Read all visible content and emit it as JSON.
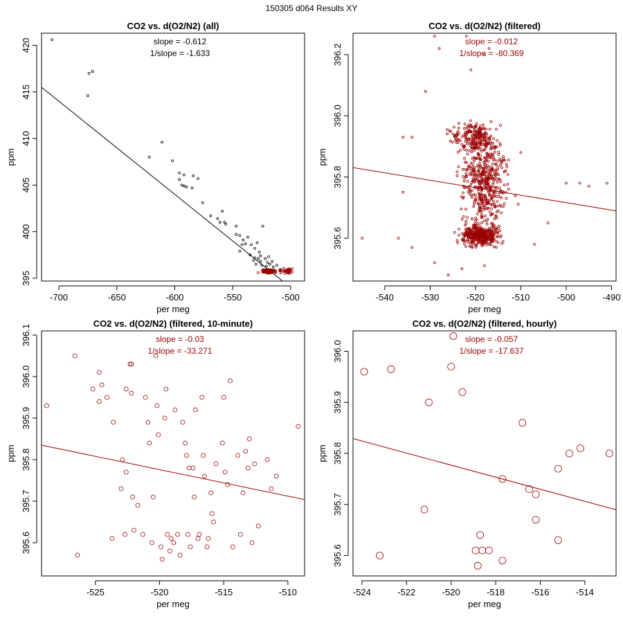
{
  "page_title": "150305   d064   Results XY",
  "colors": {
    "all_points": "#000000",
    "filtered": "#990000",
    "axis": "#000000"
  },
  "chart_data": [
    {
      "type": "scatter",
      "title": "CO2 vs. d(O2/N2) (all)",
      "xlabel": "per meg",
      "ylabel": "ppm",
      "xlim": [
        -715,
        -488
      ],
      "ylim": [
        394.7,
        421.3
      ],
      "xticks": [
        -700,
        -650,
        -600,
        -550,
        -500
      ],
      "yticks": [
        395,
        400,
        405,
        410,
        415,
        420
      ],
      "annotations": {
        "slope": "slope = -0.612",
        "inv_slope": "1/slope = -1.633",
        "color": "#000000"
      },
      "fit_line": {
        "slope": -0.1,
        "x0": -520,
        "y0": 396.0,
        "x_range": [
          -715,
          -488
        ],
        "color": "#000000"
      },
      "series": [
        {
          "name": "all",
          "color": "#000000",
          "marker_size": 1.5,
          "points": [
            [
              -706,
              420.6
            ],
            [
              -674,
              417.0
            ],
            [
              -671,
              417.2
            ],
            [
              -675,
              414.6
            ],
            [
              -622,
              408.0
            ],
            [
              -611,
              409.6
            ],
            [
              -602,
              407.6
            ],
            [
              -596,
              406.3
            ],
            [
              -592,
              406.1
            ],
            [
              -596,
              405.6
            ],
            [
              -592,
              404.9
            ],
            [
              -590,
              404.8
            ],
            [
              -594,
              405.0
            ],
            [
              -584,
              406.0
            ],
            [
              -580,
              405.7
            ],
            [
              -585,
              404.7
            ],
            [
              -576,
              403.1
            ],
            [
              -569,
              401.7
            ],
            [
              -563,
              401.4
            ],
            [
              -559,
              402.2
            ],
            [
              -561,
              401.0
            ],
            [
              -557,
              401.0
            ],
            [
              -556,
              400.8
            ],
            [
              -547,
              400.6
            ],
            [
              -547,
              399.7
            ],
            [
              -544,
              399.6
            ],
            [
              -541,
              399.1
            ],
            [
              -539,
              398.7
            ],
            [
              -537,
              399.4
            ],
            [
              -534,
              398.6
            ],
            [
              -531,
              398.2
            ],
            [
              -529,
              398.8
            ],
            [
              -527,
              397.8
            ],
            [
              -524,
              400.6
            ],
            [
              -542,
              398.6
            ],
            [
              -544,
              397.9
            ],
            [
              -535,
              397.5
            ],
            [
              -531,
              397.2
            ],
            [
              -528,
              397.1
            ],
            [
              -532,
              396.9
            ],
            [
              -526,
              397.4
            ],
            [
              -522,
              397.1
            ],
            [
              -520,
              396.7
            ],
            [
              -518,
              396.5
            ],
            [
              -526,
              396.8
            ],
            [
              -519,
              397.3
            ],
            [
              -516,
              396.8
            ],
            [
              -525,
              396.4
            ],
            [
              -521,
              396.3
            ],
            [
              -515,
              396.2
            ],
            [
              -512,
              396.4
            ],
            [
              -530,
              396.5
            ]
          ]
        },
        {
          "name": "filtered",
          "color": "#990000",
          "marker_size": 1.5,
          "cluster": true,
          "points": [
            [
              -524,
              395.9
            ],
            [
              -518,
              395.7
            ],
            [
              -513,
              395.6
            ],
            [
              -509,
              395.8
            ],
            [
              -528,
              395.6
            ],
            [
              -502,
              395.7
            ]
          ]
        }
      ]
    },
    {
      "type": "scatter",
      "title": "CO2 vs. d(O2/N2) (filtered)",
      "xlabel": "per meg",
      "ylabel": "ppm",
      "xlim": [
        -547,
        -489
      ],
      "ylim": [
        395.46,
        396.27
      ],
      "xticks": [
        -540,
        -530,
        -520,
        -510,
        -500,
        -490
      ],
      "yticks": [
        395.6,
        395.8,
        396.0,
        396.2
      ],
      "annotations": {
        "slope": "slope = -0.012",
        "inv_slope": "1/slope = -80.369",
        "color": "#990000"
      },
      "fit_line": {
        "slope": -0.00244,
        "x0": -520,
        "y0": 395.765,
        "x_range": [
          -547,
          -489
        ],
        "color": "#990000"
      },
      "series": [
        {
          "name": "filtered",
          "color": "#990000",
          "marker_size": 1.5,
          "cloud": true,
          "points": [
            [
              -545,
              395.6
            ],
            [
              -536,
              395.93
            ],
            [
              -534,
              395.93
            ],
            [
              -529,
              396.26
            ],
            [
              -528,
              396.22
            ],
            [
              -522,
              396.26
            ],
            [
              -518,
              396.2
            ],
            [
              -517,
              396.22
            ],
            [
              -510,
              395.88
            ],
            [
              -500,
              395.78
            ],
            [
              -497,
              395.78
            ],
            [
              -495,
              395.77
            ],
            [
              -491,
              395.78
            ],
            [
              -537,
              395.6
            ],
            [
              -534,
              395.57
            ],
            [
              -529,
              395.52
            ],
            [
              -526,
              395.48
            ],
            [
              -523,
              395.5
            ],
            [
              -518,
              395.51
            ],
            [
              -521,
              396.15
            ],
            [
              -531,
              396.08
            ],
            [
              -536,
              395.75
            ],
            [
              -507,
              395.58
            ],
            [
              -504,
              395.65
            ]
          ]
        }
      ]
    },
    {
      "type": "scatter",
      "title": "CO2 vs. d(O2/N2) (filtered, 10-minute)",
      "xlabel": "per meg",
      "ylabel": "ppm",
      "xlim": [
        -529.2,
        -508.7
      ],
      "ylim": [
        395.52,
        396.11
      ],
      "xticks": [
        -525,
        -520,
        -515,
        -510
      ],
      "yticks": [
        395.6,
        395.7,
        395.8,
        395.9,
        396.0,
        396.1
      ],
      "annotations": {
        "slope": "slope = -0.03",
        "inv_slope": "1/slope = -33.271",
        "color": "#990000"
      },
      "fit_line": {
        "slope": -0.00639,
        "x0": -520,
        "y0": 395.776,
        "x_range": [
          -529.2,
          -508.7
        ],
        "color": "#990000"
      },
      "series": [
        {
          "name": "10-minute",
          "color": "#990000",
          "marker_size": 3,
          "points": [
            [
              -528.8,
              395.93
            ],
            [
              -526.6,
              396.05
            ],
            [
              -526.4,
              395.57
            ],
            [
              -525.2,
              395.97
            ],
            [
              -524.7,
              396.01
            ],
            [
              -524.7,
              395.94
            ],
            [
              -524.5,
              395.98
            ],
            [
              -524.1,
              395.95
            ],
            [
              -523.7,
              395.61
            ],
            [
              -523.6,
              395.89
            ],
            [
              -522.9,
              395.8
            ],
            [
              -522.6,
              395.77
            ],
            [
              -522.6,
              395.97
            ],
            [
              -522.7,
              395.62
            ],
            [
              -522.3,
              396.03
            ],
            [
              -522.2,
              396.03
            ],
            [
              -522.2,
              395.96
            ],
            [
              -522.1,
              395.71
            ],
            [
              -522.0,
              395.63
            ],
            [
              -521.7,
              395.69
            ],
            [
              -521.3,
              395.62
            ],
            [
              -521.1,
              395.95
            ],
            [
              -520.9,
              395.89
            ],
            [
              -520.8,
              395.84
            ],
            [
              -520.6,
              395.6
            ],
            [
              -520.5,
              395.71
            ],
            [
              -520.3,
              396.05
            ],
            [
              -520.2,
              395.93
            ],
            [
              -520.1,
              395.86
            ],
            [
              -519.9,
              395.59
            ],
            [
              -519.8,
              395.56
            ],
            [
              -519.6,
              395.9
            ],
            [
              -519.5,
              395.97
            ],
            [
              -519.4,
              395.62
            ],
            [
              -519.2,
              395.58
            ],
            [
              -519.1,
              395.61
            ],
            [
              -518.9,
              395.6
            ],
            [
              -518.8,
              395.92
            ],
            [
              -518.6,
              395.62
            ],
            [
              -518.4,
              395.57
            ],
            [
              -518.2,
              395.89
            ],
            [
              -518.0,
              395.84
            ],
            [
              -517.9,
              395.81
            ],
            [
              -517.8,
              395.62
            ],
            [
              -517.6,
              395.59
            ],
            [
              -517.4,
              395.78
            ],
            [
              -517.3,
              395.71
            ],
            [
              -517.2,
              395.92
            ],
            [
              -517.0,
              395.61
            ],
            [
              -516.9,
              395.62
            ],
            [
              -516.7,
              395.95
            ],
            [
              -516.6,
              395.81
            ],
            [
              -516.5,
              395.76
            ],
            [
              -516.3,
              395.59
            ],
            [
              -516.2,
              395.61
            ],
            [
              -516.0,
              395.72
            ],
            [
              -515.9,
              395.67
            ],
            [
              -515.8,
              395.65
            ],
            [
              -515.6,
              395.79
            ],
            [
              -515.1,
              395.84
            ],
            [
              -515.0,
              395.95
            ],
            [
              -514.9,
              395.77
            ],
            [
              -514.7,
              395.74
            ],
            [
              -514.3,
              395.59
            ],
            [
              -513.9,
              395.81
            ],
            [
              -513.7,
              395.62
            ],
            [
              -513.5,
              395.72
            ],
            [
              -513.3,
              395.82
            ],
            [
              -513.1,
              395.78
            ],
            [
              -513.0,
              395.85
            ],
            [
              -512.8,
              395.6
            ],
            [
              -512.6,
              395.79
            ],
            [
              -512.3,
              395.64
            ],
            [
              -511.6,
              395.8
            ],
            [
              -511.3,
              395.73
            ],
            [
              -510.9,
              395.76
            ],
            [
              -509.2,
              395.88
            ],
            [
              -514.5,
              395.99
            ],
            [
              -517.7,
              395.78
            ],
            [
              -523.0,
              395.73
            ]
          ]
        }
      ]
    },
    {
      "type": "scatter",
      "title": "CO2 vs. d(O2/N2) (filtered, hourly)",
      "xlabel": "per meg",
      "ylabel": "ppm",
      "xlim": [
        -524.4,
        -512.6
      ],
      "ylim": [
        395.56,
        396.04
      ],
      "xticks": [
        -524,
        -522,
        -520,
        -518,
        -516,
        -514
      ],
      "yticks": [
        395.6,
        395.7,
        395.8,
        395.9,
        396.0
      ],
      "annotations": {
        "slope": "slope = -0.057",
        "inv_slope": "1/slope = -17.637",
        "color": "#990000"
      },
      "fit_line": {
        "slope": -0.01181,
        "x0": -520,
        "y0": 395.777,
        "x_range": [
          -524.4,
          -512.6
        ],
        "color": "#990000"
      },
      "series": [
        {
          "name": "hourly",
          "color": "#990000",
          "marker_size": 5,
          "points": [
            [
              -523.9,
              395.96
            ],
            [
              -522.7,
              395.965
            ],
            [
              -523.2,
              395.6
            ],
            [
              -521.2,
              395.69
            ],
            [
              -521.0,
              395.9
            ],
            [
              -520.0,
              395.97
            ],
            [
              -519.9,
              396.03
            ],
            [
              -519.5,
              395.92
            ],
            [
              -518.7,
              395.64
            ],
            [
              -518.6,
              395.61
            ],
            [
              -518.3,
              395.61
            ],
            [
              -518.9,
              395.61
            ],
            [
              -518.8,
              395.58
            ],
            [
              -517.7,
              395.75
            ],
            [
              -517.7,
              395.59
            ],
            [
              -516.8,
              395.86
            ],
            [
              -516.5,
              395.73
            ],
            [
              -516.2,
              395.72
            ],
            [
              -516.2,
              395.67
            ],
            [
              -515.2,
              395.77
            ],
            [
              -515.2,
              395.63
            ],
            [
              -514.7,
              395.8
            ],
            [
              -514.2,
              395.81
            ],
            [
              -512.9,
              395.8
            ]
          ]
        }
      ]
    }
  ]
}
